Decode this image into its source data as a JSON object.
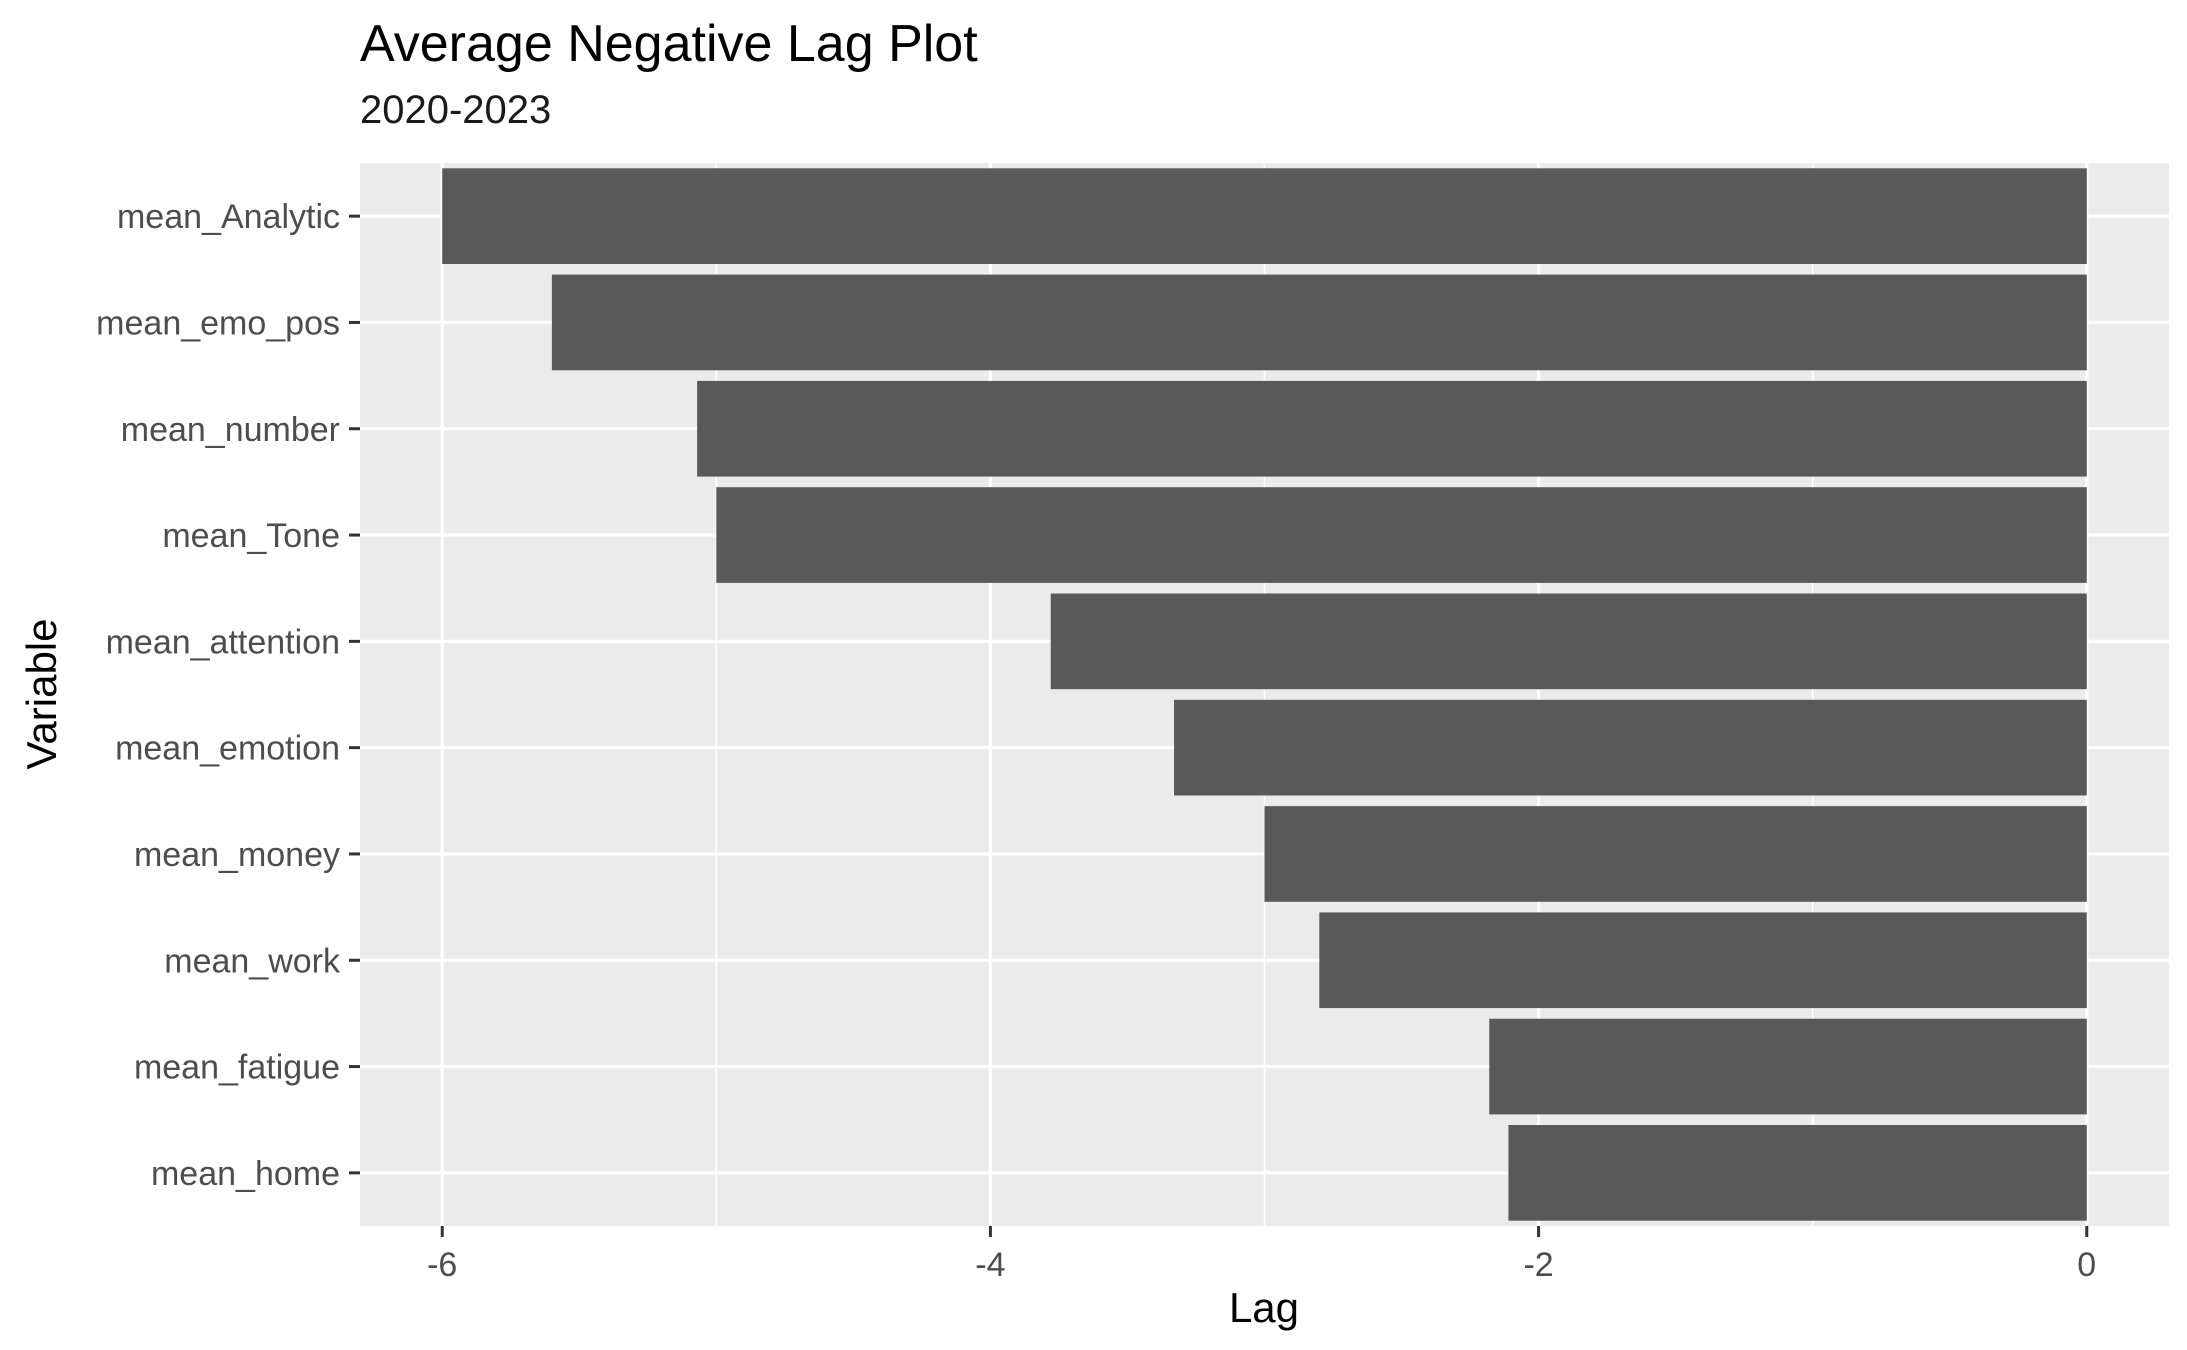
{
  "chart_data": {
    "type": "bar",
    "orientation": "horizontal",
    "title": "Average Negative Lag Plot",
    "subtitle": "2020-2023",
    "xlabel": "Lag",
    "ylabel": "Variable",
    "categories": [
      "mean_Analytic",
      "mean_emo_pos",
      "mean_number",
      "mean_Tone",
      "mean_attention",
      "mean_emotion",
      "mean_money",
      "mean_work",
      "mean_fatigue",
      "mean_home"
    ],
    "values": [
      -6.0,
      -5.6,
      -5.07,
      -5.0,
      -3.78,
      -3.33,
      -3.0,
      -2.8,
      -2.18,
      -2.11
    ],
    "xlim": [
      -6.3,
      0.3
    ],
    "xticks": [
      -6,
      -4,
      -2,
      0
    ],
    "xtick_labels": [
      "-6",
      "-4",
      "-2",
      "0"
    ],
    "grid": true,
    "bar_color": "#595959",
    "panel_background": "#EBEBEB",
    "grid_color": "#FFFFFF"
  }
}
